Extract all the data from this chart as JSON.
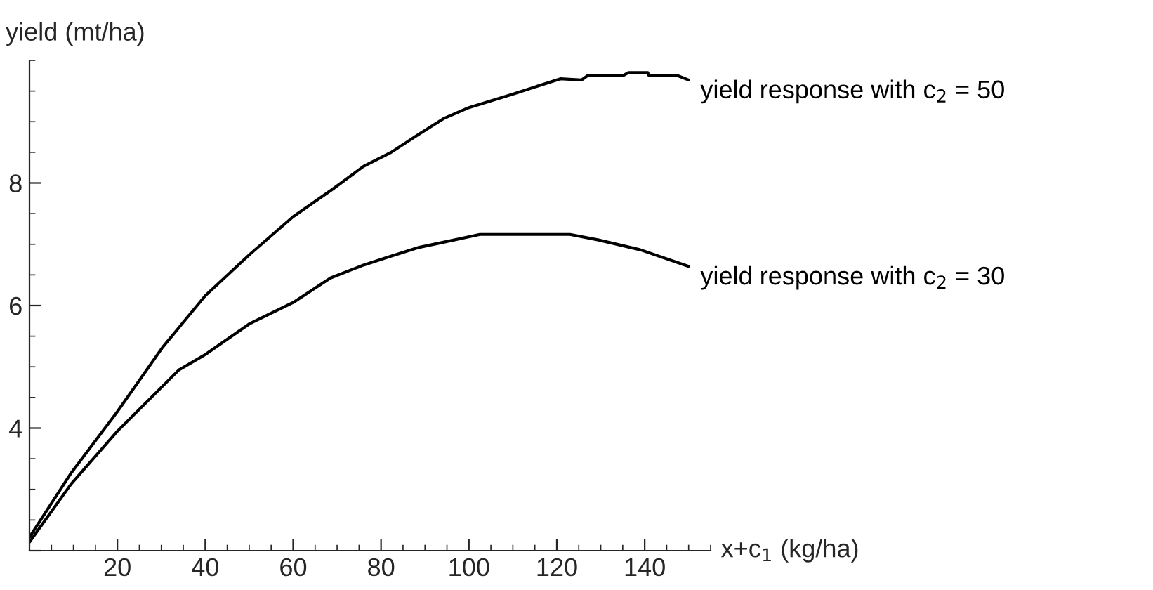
{
  "chart_data": {
    "type": "line",
    "xlabel": "x+c$_{1}$ (kg/ha)",
    "ylabel": "yield (mt/ha)",
    "xlim": [
      0,
      155
    ],
    "ylim": [
      2,
      10
    ],
    "xticks": [
      20,
      40,
      60,
      80,
      100,
      120,
      140
    ],
    "yticks": [
      {
        "value": 2,
        "label": null
      },
      4,
      6,
      8
    ],
    "grid": false,
    "legend": false,
    "marker": "none",
    "line_style": "solid",
    "series": [
      {
        "name": "yield response with c$_{2}$ = 50",
        "color": "#000000",
        "x": [
          0,
          9.5,
          20,
          30.3,
          40,
          50.2,
          60,
          69,
          76,
          82.3,
          88.7,
          94.2,
          100,
          110,
          120.8,
          125.6,
          127,
          135,
          136.3,
          140.7,
          141,
          147.5,
          150
        ],
        "values": [
          2.22,
          3.27,
          4.27,
          5.32,
          6.16,
          6.84,
          7.45,
          7.9,
          8.27,
          8.5,
          8.8,
          9.05,
          9.23,
          9.45,
          9.7,
          9.68,
          9.75,
          9.75,
          9.8,
          9.8,
          9.75,
          9.75,
          9.68
        ]
      },
      {
        "name": "yield response with c$_{2}$ = 30",
        "color": "#000000",
        "x": [
          0,
          9.5,
          20,
          34,
          40,
          50,
          60,
          68.5,
          76,
          82,
          88.7,
          94,
          102.5,
          123,
          129.5,
          139,
          150
        ],
        "values": [
          2.14,
          3.09,
          3.95,
          4.95,
          5.2,
          5.7,
          6.05,
          6.45,
          6.66,
          6.8,
          6.95,
          7.03,
          7.16,
          7.16,
          7.07,
          6.91,
          6.64
        ]
      }
    ]
  }
}
